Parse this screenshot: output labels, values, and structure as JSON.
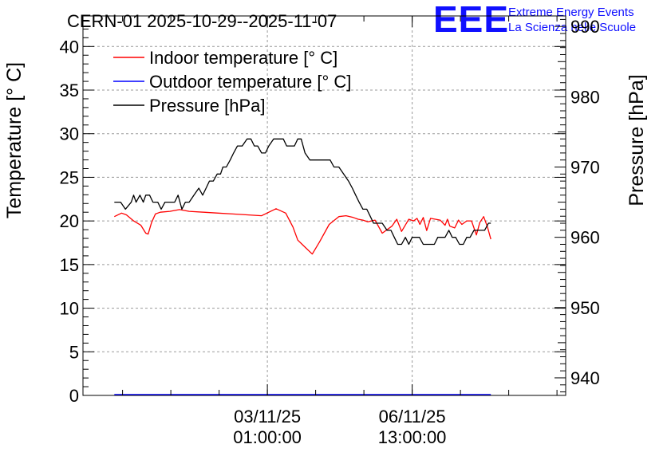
{
  "chart_data": {
    "type": "line",
    "title": "CERN-01 2025-10-29--2025-11-07",
    "brand": {
      "logo": "EEE",
      "line1": "Extreme Energy Events",
      "line2": "La Scienza nelle Scuole",
      "color": "#1010ff"
    },
    "xlabel": "",
    "ylabel": "Temperature [° C]",
    "y2label": "Pressure [hPa]",
    "ylim": [
      0,
      43.5
    ],
    "y2lim": [
      937.5,
      991.5
    ],
    "xlim": [
      0,
      10
    ],
    "grid": true,
    "legend_position": "top-left",
    "x_ticks": [
      {
        "value": 3.82,
        "line1": "03/11/25",
        "line2": "01:00:00"
      },
      {
        "value": 6.82,
        "line1": "06/11/25",
        "line2": "13:00:00"
      }
    ],
    "y_ticks": [
      0,
      5,
      10,
      15,
      20,
      25,
      30,
      35,
      40
    ],
    "y2_ticks": [
      940,
      950,
      960,
      970,
      980,
      990
    ],
    "series": [
      {
        "name": "Indoor temperature [° C]",
        "axis": "left",
        "color": "#ff0000",
        "x": [
          0.65,
          0.8,
          0.9,
          1.05,
          1.2,
          1.3,
          1.35,
          1.42,
          1.5,
          1.6,
          1.8,
          2.0,
          2.2,
          2.5,
          2.8,
          3.1,
          3.4,
          3.7,
          4.0,
          4.2,
          4.35,
          4.45,
          4.6,
          4.75,
          4.9,
          5.1,
          5.3,
          5.45,
          5.6,
          5.7,
          5.8,
          5.9,
          6.05,
          6.2,
          6.4,
          6.5,
          6.6,
          6.75,
          6.85,
          6.92,
          6.98,
          7.05,
          7.12,
          7.2,
          7.4,
          7.5,
          7.55,
          7.6,
          7.7,
          7.78,
          7.85,
          7.95,
          8.05,
          8.15,
          8.22,
          8.3,
          8.38,
          8.45
        ],
        "values": [
          20.5,
          20.9,
          20.7,
          20.0,
          19.5,
          18.6,
          18.5,
          19.8,
          20.8,
          21.0,
          21.1,
          21.3,
          21.1,
          21.0,
          20.9,
          20.8,
          20.7,
          20.6,
          21.4,
          20.9,
          19.3,
          17.8,
          17.0,
          16.2,
          17.6,
          19.6,
          20.5,
          20.6,
          20.4,
          20.2,
          20.1,
          19.9,
          20.1,
          18.6,
          19.4,
          20.2,
          18.8,
          20.2,
          20.0,
          20.3,
          19.6,
          20.4,
          18.9,
          20.3,
          20.1,
          19.5,
          20.2,
          19.4,
          19.2,
          20.1,
          19.6,
          20.0,
          20.0,
          18.4,
          19.8,
          20.5,
          19.3,
          17.9
        ]
      },
      {
        "name": "Outdoor temperature [° C]",
        "axis": "left",
        "color": "#0000ff",
        "x": [
          0.65,
          8.45
        ],
        "values": [
          0.1,
          0.1
        ]
      },
      {
        "name": "Pressure [hPa]",
        "axis": "right",
        "color": "#000000",
        "x": [
          0.65,
          0.78,
          0.88,
          1.0,
          1.05,
          1.1,
          1.18,
          1.25,
          1.3,
          1.38,
          1.45,
          1.5,
          1.55,
          1.62,
          1.7,
          1.75,
          1.8,
          1.85,
          1.9,
          1.97,
          2.05,
          2.12,
          2.2,
          2.3,
          2.4,
          2.48,
          2.55,
          2.62,
          2.7,
          2.78,
          2.85,
          2.9,
          2.97,
          3.05,
          3.12,
          3.2,
          3.3,
          3.4,
          3.48,
          3.55,
          3.62,
          3.7,
          3.78,
          3.85,
          3.95,
          4.05,
          4.15,
          4.22,
          4.3,
          4.38,
          4.45,
          4.52,
          4.6,
          4.7,
          4.8,
          4.9,
          4.97,
          5.05,
          5.12,
          5.2,
          5.3,
          5.4,
          5.5,
          5.58,
          5.65,
          5.72,
          5.8,
          5.88,
          5.95,
          6.02,
          6.1,
          6.2,
          6.3,
          6.38,
          6.45,
          6.52,
          6.6,
          6.68,
          6.75,
          6.82,
          6.9,
          6.97,
          7.05,
          7.12,
          7.2,
          7.28,
          7.35,
          7.42,
          7.5,
          7.58,
          7.65,
          7.72,
          7.8,
          7.88,
          7.95,
          8.02,
          8.1,
          8.18,
          8.25,
          8.32,
          8.4,
          8.45
        ],
        "values": [
          965,
          965,
          964,
          965,
          966,
          965,
          966,
          965,
          966,
          966,
          965,
          965,
          965,
          964,
          965,
          965,
          965,
          965,
          965,
          966,
          964,
          965,
          965,
          966,
          967,
          966,
          967,
          968,
          968,
          969,
          969,
          970,
          970,
          971,
          972,
          973,
          973,
          974,
          974,
          973,
          973,
          972,
          972,
          973,
          974,
          974,
          974,
          973,
          973,
          973,
          974,
          974,
          972,
          971,
          971,
          971,
          971,
          971,
          971,
          970,
          970,
          969,
          968,
          967,
          966,
          965,
          964,
          964,
          963,
          962,
          962,
          962,
          961,
          961,
          960,
          959,
          959,
          960,
          959,
          960,
          960,
          960,
          959,
          959,
          959,
          959,
          960,
          960,
          960,
          961,
          960,
          960,
          959,
          959,
          960,
          960,
          961,
          961,
          961,
          961,
          962,
          962
        ]
      }
    ]
  }
}
